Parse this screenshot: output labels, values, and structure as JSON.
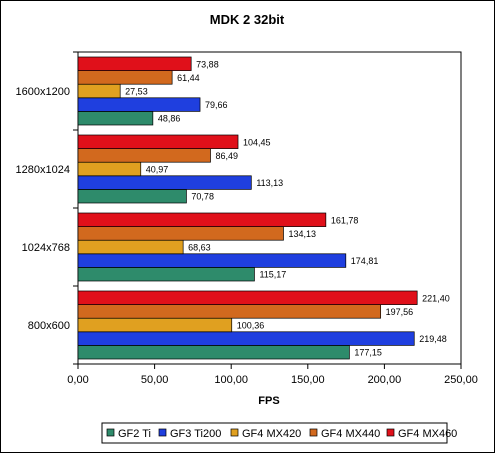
{
  "chart_data": {
    "type": "bar",
    "orientation": "horizontal",
    "title": "MDK 2 32bit",
    "xlabel": "FPS",
    "ylabel": "",
    "xlim": [
      0,
      250
    ],
    "xticks": [
      "0,00",
      "50,00",
      "100,00",
      "150,00",
      "200,00",
      "250,00"
    ],
    "grid": false,
    "legend_position": "bottom",
    "categories": [
      "1600x1200",
      "1280x1024",
      "1024x768",
      "800x600"
    ],
    "series": [
      {
        "name": "GF2 Ti",
        "color": "#2e8b6b",
        "values": [
          48.86,
          70.78,
          115.17,
          177.15
        ],
        "labels": [
          "48,86",
          "70,78",
          "115,17",
          "177,15"
        ]
      },
      {
        "name": "GF3 Ti200",
        "color": "#1f3fdf",
        "values": [
          79.66,
          113.13,
          174.81,
          219.48
        ],
        "labels": [
          "79,66",
          "113,13",
          "174,81",
          "219,48"
        ]
      },
      {
        "name": "GF4 MX420",
        "color": "#e0a020",
        "values": [
          27.53,
          40.97,
          68.63,
          100.36
        ],
        "labels": [
          "27,53",
          "40,97",
          "68,63",
          "100,36"
        ]
      },
      {
        "name": "GF4 MX440",
        "color": "#d2691e",
        "values": [
          61.44,
          86.49,
          134.13,
          197.56
        ],
        "labels": [
          "61,44",
          "86,49",
          "134,13",
          "197,56"
        ]
      },
      {
        "name": "GF4 MX460",
        "color": "#e0101a",
        "values": [
          73.88,
          104.45,
          161.78,
          221.4
        ],
        "labels": [
          "73,88",
          "104,45",
          "161,78",
          "221,40"
        ]
      }
    ]
  }
}
